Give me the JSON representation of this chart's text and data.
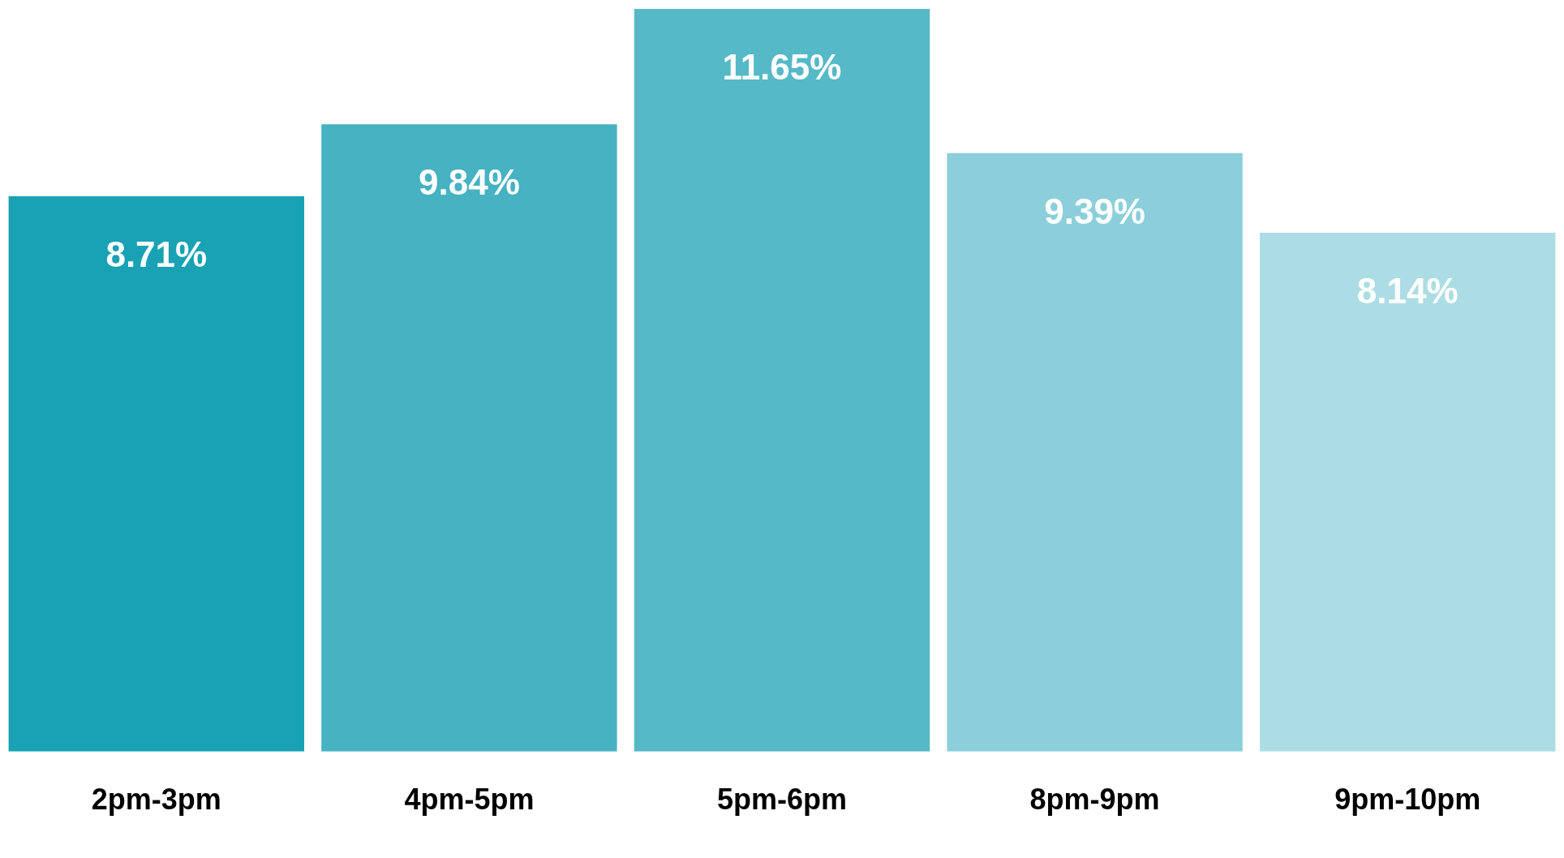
{
  "chart_data": {
    "type": "bar",
    "categories": [
      "2pm-3pm",
      "4pm-5pm",
      "5pm-6pm",
      "8pm-9pm",
      "9pm-10pm"
    ],
    "values": [
      8.71,
      9.84,
      11.65,
      9.39,
      8.14
    ],
    "value_labels": [
      "8.71%",
      "9.84%",
      "11.65%",
      "9.39%",
      "8.14%"
    ],
    "colors": [
      "#18a2b4",
      "#46b2c2",
      "#56b9c8",
      "#8ccfdb",
      "#addde4"
    ],
    "grid": false,
    "legend": false
  }
}
